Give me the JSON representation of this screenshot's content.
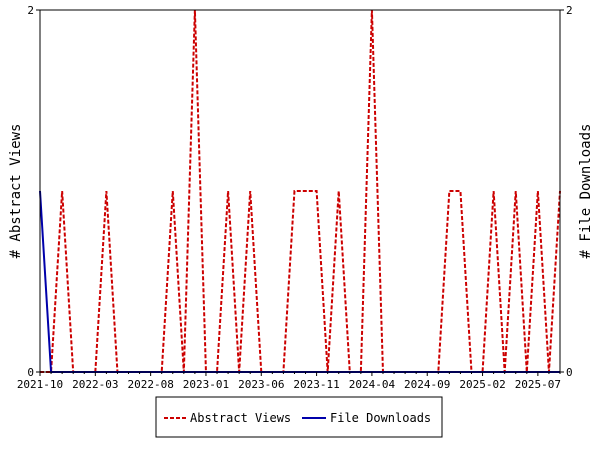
{
  "chart_data": {
    "type": "line",
    "title": "",
    "ylabel_left": "# Abstract Views",
    "ylabel_right": "# File Downloads",
    "ylim_left": [
      0,
      2
    ],
    "ylim_right": [
      0,
      2
    ],
    "y_ticks_left": [
      "0",
      "2"
    ],
    "y_ticks_right": [
      "0",
      "2"
    ],
    "x_ticks": [
      "2021-10",
      "2022-03",
      "2022-08",
      "2023-01",
      "2023-06",
      "2023-11",
      "2024-04",
      "2024-09",
      "2025-02",
      "2025-07"
    ],
    "x_months": [
      "2021-10",
      "2021-11",
      "2021-12",
      "2022-01",
      "2022-02",
      "2022-03",
      "2022-04",
      "2022-05",
      "2022-06",
      "2022-07",
      "2022-08",
      "2022-09",
      "2022-10",
      "2022-11",
      "2022-12",
      "2023-01",
      "2023-02",
      "2023-03",
      "2023-04",
      "2023-05",
      "2023-06",
      "2023-07",
      "2023-08",
      "2023-09",
      "2023-10",
      "2023-11",
      "2023-12",
      "2024-01",
      "2024-02",
      "2024-03",
      "2024-04",
      "2024-05",
      "2024-06",
      "2024-07",
      "2024-08",
      "2024-09",
      "2024-10",
      "2024-11",
      "2024-12",
      "2025-01",
      "2025-02",
      "2025-03",
      "2025-04",
      "2025-05",
      "2025-06",
      "2025-07",
      "2025-08",
      "2025-09"
    ],
    "grid": false,
    "legend_position": "bottom",
    "series": [
      {
        "name": "Abstract Views",
        "color": "#cc0000",
        "dash": true,
        "axis": "left",
        "values": [
          0,
          0,
          1,
          0,
          0,
          0,
          1,
          0,
          0,
          0,
          0,
          0,
          1,
          0,
          2,
          0,
          0,
          1,
          0,
          1,
          0,
          0,
          0,
          1,
          1,
          1,
          0,
          1,
          0,
          0,
          2,
          0,
          0,
          0,
          0,
          0,
          0,
          1,
          1,
          0,
          0,
          1,
          0,
          1,
          0,
          1,
          0,
          1
        ]
      },
      {
        "name": "File Downloads",
        "color": "#0000aa",
        "dash": false,
        "axis": "right",
        "values": [
          1,
          0,
          0,
          0,
          0,
          0,
          0,
          0,
          0,
          0,
          0,
          0,
          0,
          0,
          0,
          0,
          0,
          0,
          0,
          0,
          0,
          0,
          0,
          0,
          0,
          0,
          0,
          0,
          0,
          0,
          0,
          0,
          0,
          0,
          0,
          0,
          0,
          0,
          0,
          0,
          0,
          0,
          0,
          0,
          0,
          0,
          0,
          0
        ]
      }
    ]
  }
}
